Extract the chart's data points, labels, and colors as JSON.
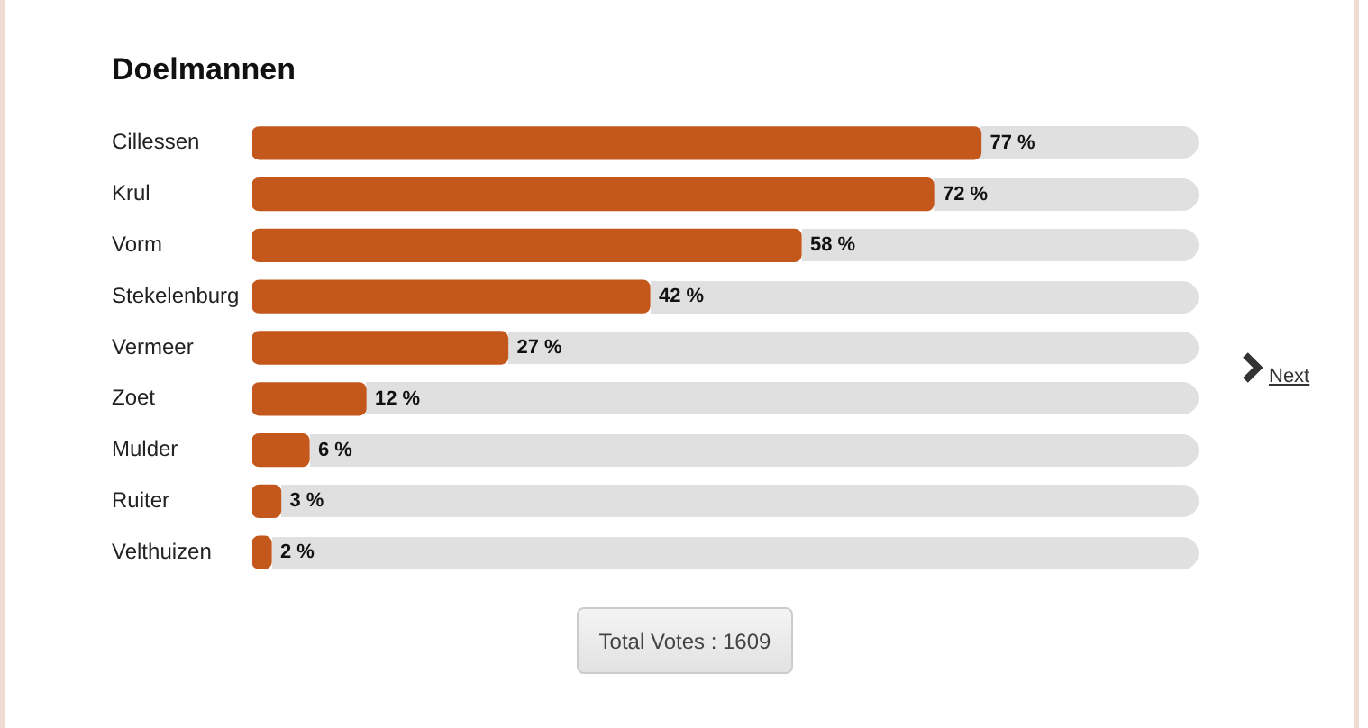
{
  "chart_data": {
    "type": "bar",
    "title": "Doelmannen",
    "orientation": "horizontal",
    "categories": [
      "Cillessen",
      "Krul",
      "Vorm",
      "Stekelenburg",
      "Vermeer",
      "Zoet",
      "Mulder",
      "Ruiter",
      "Velthuizen"
    ],
    "values": [
      77,
      72,
      58,
      42,
      27,
      12,
      6,
      3,
      2
    ],
    "value_labels": [
      "77 %",
      "72 %",
      "58 %",
      "42 %",
      "27 %",
      "12 %",
      "6 %",
      "3 %",
      "2 %"
    ],
    "color": "#c4581c",
    "xlim": [
      0,
      100
    ],
    "tick_labels": "y",
    "annotations": [
      "Total Votes : 1609",
      "Next"
    ]
  }
}
